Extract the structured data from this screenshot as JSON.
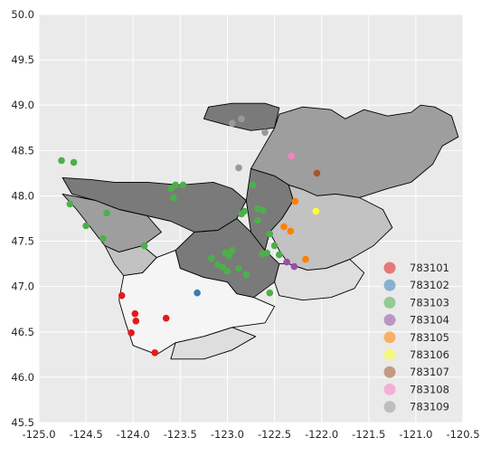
{
  "chart_data": {
    "type": "scatter",
    "title": "",
    "xlabel": "",
    "ylabel": "",
    "xlim": [
      -125.0,
      -120.5
    ],
    "ylim": [
      45.5,
      50.0
    ],
    "x_ticks": [
      "-125.0",
      "-124.5",
      "-124.0",
      "-123.5",
      "-123.0",
      "-122.5",
      "-122.0",
      "-121.5",
      "-121.0",
      "-120.5"
    ],
    "y_ticks": [
      "45.5",
      "46.0",
      "46.5",
      "47.0",
      "47.5",
      "48.0",
      "48.5",
      "49.0",
      "49.5",
      "50.0"
    ],
    "grid": true,
    "background": "#eaeaea",
    "legend_position": "lower-right",
    "basemap": {
      "description": "watershed regions drawn in shades of gray",
      "shades": [
        "#7a7a7a",
        "#9e9e9e",
        "#c2c2c2",
        "#dedede",
        "#f5f5f5"
      ]
    },
    "series": [
      {
        "name": "783101",
        "color": "#e41a1c",
        "points": [
          [
            -124.12,
            46.9
          ],
          [
            -123.98,
            46.7
          ],
          [
            -123.97,
            46.62
          ],
          [
            -124.02,
            46.49
          ],
          [
            -123.65,
            46.65
          ],
          [
            -123.77,
            46.27
          ]
        ]
      },
      {
        "name": "783102",
        "color": "#377eb8",
        "points": [
          [
            -123.32,
            46.93
          ]
        ]
      },
      {
        "name": "783103",
        "color": "#4daf4a",
        "points": [
          [
            -124.76,
            48.39
          ],
          [
            -124.63,
            48.37
          ],
          [
            -124.67,
            47.91
          ],
          [
            -124.28,
            47.81
          ],
          [
            -124.5,
            47.67
          ],
          [
            -124.32,
            47.53
          ],
          [
            -123.88,
            47.45
          ],
          [
            -123.6,
            48.08
          ],
          [
            -123.55,
            48.12
          ],
          [
            -123.47,
            48.12
          ],
          [
            -123.57,
            47.98
          ],
          [
            -123.17,
            47.31
          ],
          [
            -123.1,
            47.24
          ],
          [
            -123.05,
            47.21
          ],
          [
            -123.0,
            47.17
          ],
          [
            -122.98,
            47.34
          ],
          [
            -123.02,
            47.37
          ],
          [
            -122.95,
            47.4
          ],
          [
            -122.85,
            47.8
          ],
          [
            -122.82,
            47.83
          ],
          [
            -122.73,
            48.12
          ],
          [
            -122.68,
            47.86
          ],
          [
            -122.62,
            47.84
          ],
          [
            -122.68,
            47.73
          ],
          [
            -122.55,
            47.58
          ],
          [
            -122.63,
            47.36
          ],
          [
            -122.58,
            47.37
          ],
          [
            -122.5,
            47.45
          ],
          [
            -122.45,
            47.35
          ],
          [
            -122.8,
            47.13
          ],
          [
            -122.88,
            47.2
          ],
          [
            -122.55,
            46.93
          ]
        ]
      },
      {
        "name": "783104",
        "color": "#984ea3",
        "points": [
          [
            -122.37,
            47.27
          ],
          [
            -122.29,
            47.22
          ]
        ]
      },
      {
        "name": "783105",
        "color": "#ff7f00",
        "points": [
          [
            -122.28,
            47.94
          ],
          [
            -122.4,
            47.66
          ],
          [
            -122.33,
            47.61
          ],
          [
            -122.17,
            47.3
          ]
        ]
      },
      {
        "name": "783106",
        "color": "#ffff33",
        "points": [
          [
            -122.06,
            47.83
          ]
        ]
      },
      {
        "name": "783107",
        "color": "#a65628",
        "points": [
          [
            -122.05,
            48.25
          ]
        ]
      },
      {
        "name": "783108",
        "color": "#f781bf",
        "points": [
          [
            -122.32,
            48.44
          ]
        ]
      },
      {
        "name": "783109",
        "color": "#999999",
        "points": [
          [
            -122.85,
            48.85
          ],
          [
            -122.95,
            48.8
          ],
          [
            -122.6,
            48.7
          ],
          [
            -122.88,
            48.31
          ]
        ]
      }
    ]
  }
}
